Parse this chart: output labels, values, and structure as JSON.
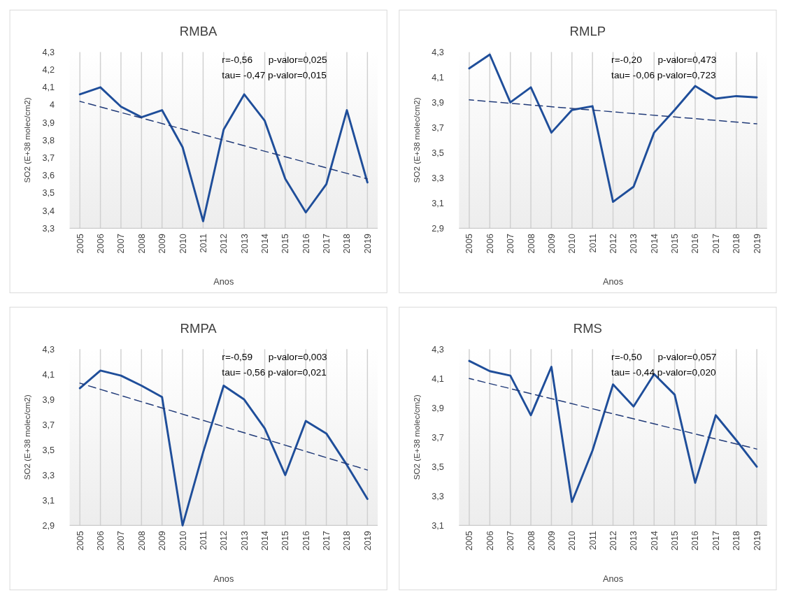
{
  "chart_data": [
    {
      "type": "line",
      "title": "RMBA",
      "xlabel": "Anos",
      "ylabel": "SO2 (E+38 molec/cm2)",
      "categories": [
        "2005",
        "2006",
        "2007",
        "2008",
        "2009",
        "2010",
        "2011",
        "2012",
        "2013",
        "2014",
        "2015",
        "2016",
        "2017",
        "2018",
        "2019"
      ],
      "ylim": [
        3.3,
        4.3
      ],
      "yticks": [
        {
          "value": 3.3,
          "label": "3,3"
        },
        {
          "value": 3.4,
          "label": "3,4"
        },
        {
          "value": 3.5,
          "label": "3,5"
        },
        {
          "value": 3.6,
          "label": "3,6"
        },
        {
          "value": 3.7,
          "label": "3,7"
        },
        {
          "value": 3.8,
          "label": "3,8"
        },
        {
          "value": 3.9,
          "label": "3,9"
        },
        {
          "value": 4.0,
          "label": "4"
        },
        {
          "value": 4.1,
          "label": "4,1"
        },
        {
          "value": 4.2,
          "label": "4,2"
        },
        {
          "value": 4.3,
          "label": "4,3"
        }
      ],
      "grid": "x",
      "annotations": [
        "r=-0,56      p-valor=0,025",
        "tau= -0,47 p-valor=0,015"
      ],
      "series": [
        {
          "color": "#1f4e9a",
          "values": [
            4.06,
            4.1,
            3.99,
            3.93,
            3.97,
            3.76,
            3.34,
            3.86,
            4.06,
            3.91,
            3.58,
            3.39,
            3.55,
            3.97,
            3.56
          ]
        },
        {
          "color": "#203a78",
          "line_style": "dashed",
          "values": [
            4.02,
            null,
            null,
            null,
            null,
            null,
            null,
            null,
            null,
            null,
            null,
            null,
            null,
            null,
            3.58
          ]
        }
      ]
    },
    {
      "type": "line",
      "title": "RMLP",
      "xlabel": "Anos",
      "ylabel": "SO2 (E+38 molec/cm2)",
      "categories": [
        "2005",
        "2006",
        "2007",
        "2008",
        "2009",
        "2010",
        "2011",
        "2012",
        "2013",
        "2014",
        "2015",
        "2016",
        "2017",
        "2018",
        "2019"
      ],
      "ylim": [
        2.9,
        4.3
      ],
      "yticks": [
        {
          "value": 2.9,
          "label": "2,9"
        },
        {
          "value": 3.1,
          "label": "3,1"
        },
        {
          "value": 3.3,
          "label": "3,3"
        },
        {
          "value": 3.5,
          "label": "3,5"
        },
        {
          "value": 3.7,
          "label": "3,7"
        },
        {
          "value": 3.9,
          "label": "3,9"
        },
        {
          "value": 4.1,
          "label": "4,1"
        },
        {
          "value": 4.3,
          "label": "4,3"
        }
      ],
      "grid": "x",
      "annotations": [
        "r=-0,20      p-valor=0,473",
        "tau= -0,06 p-valor=0,723"
      ],
      "series": [
        {
          "color": "#1f4e9a",
          "values": [
            4.17,
            4.28,
            3.9,
            4.02,
            3.66,
            3.84,
            3.87,
            3.11,
            3.23,
            3.66,
            3.84,
            4.03,
            3.93,
            3.95,
            3.94
          ]
        },
        {
          "color": "#203a78",
          "line_style": "dashed",
          "values": [
            3.92,
            null,
            null,
            null,
            null,
            null,
            null,
            null,
            null,
            null,
            null,
            null,
            null,
            null,
            3.73
          ]
        }
      ]
    },
    {
      "type": "line",
      "title": "RMPA",
      "xlabel": "Anos",
      "ylabel": "SO2 (E+38 molec/cm2)",
      "categories": [
        "2005",
        "2006",
        "2007",
        "2008",
        "2009",
        "2010",
        "2011",
        "2012",
        "2013",
        "2014",
        "2015",
        "2016",
        "2017",
        "2018",
        "2019"
      ],
      "ylim": [
        2.9,
        4.3
      ],
      "yticks": [
        {
          "value": 2.9,
          "label": "2,9"
        },
        {
          "value": 3.1,
          "label": "3,1"
        },
        {
          "value": 3.3,
          "label": "3,3"
        },
        {
          "value": 3.5,
          "label": "3,5"
        },
        {
          "value": 3.7,
          "label": "3,7"
        },
        {
          "value": 3.9,
          "label": "3,9"
        },
        {
          "value": 4.1,
          "label": "4,1"
        },
        {
          "value": 4.3,
          "label": "4,3"
        }
      ],
      "grid": "x",
      "annotations": [
        "r=-0,59      p-valor=0,003",
        "tau= -0,56 p-valor=0,021"
      ],
      "series": [
        {
          "color": "#1f4e9a",
          "values": [
            3.99,
            4.13,
            4.09,
            4.01,
            3.92,
            2.9,
            3.48,
            4.01,
            3.9,
            3.67,
            3.3,
            3.73,
            3.63,
            3.38,
            3.11
          ]
        },
        {
          "color": "#203a78",
          "line_style": "dashed",
          "values": [
            4.03,
            null,
            null,
            null,
            null,
            null,
            null,
            null,
            null,
            null,
            null,
            null,
            null,
            null,
            3.34
          ]
        }
      ]
    },
    {
      "type": "line",
      "title": "RMS",
      "xlabel": "Anos",
      "ylabel": "SO2 (E+38 molec/cm2)",
      "categories": [
        "2005",
        "2006",
        "2007",
        "2008",
        "2009",
        "2010",
        "2011",
        "2012",
        "2013",
        "2014",
        "2015",
        "2016",
        "2017",
        "2018",
        "2019"
      ],
      "ylim": [
        3.1,
        4.3
      ],
      "yticks": [
        {
          "value": 3.1,
          "label": "3,1"
        },
        {
          "value": 3.3,
          "label": "3,3"
        },
        {
          "value": 3.5,
          "label": "3,5"
        },
        {
          "value": 3.7,
          "label": "3,7"
        },
        {
          "value": 3.9,
          "label": "3,9"
        },
        {
          "value": 4.1,
          "label": "4,1"
        },
        {
          "value": 4.3,
          "label": "4,3"
        }
      ],
      "grid": "x",
      "annotations": [
        "r=-0,50      p-valor=0,057",
        "tau= -0,44 p-valor=0,020"
      ],
      "series": [
        {
          "color": "#1f4e9a",
          "values": [
            4.22,
            4.15,
            4.12,
            3.85,
            4.18,
            3.26,
            3.61,
            4.06,
            3.91,
            4.13,
            3.99,
            3.39,
            3.85,
            3.68,
            3.5
          ]
        },
        {
          "color": "#203a78",
          "line_style": "dashed",
          "values": [
            4.1,
            null,
            null,
            null,
            null,
            null,
            null,
            null,
            null,
            null,
            null,
            null,
            null,
            null,
            3.62
          ]
        }
      ]
    }
  ]
}
